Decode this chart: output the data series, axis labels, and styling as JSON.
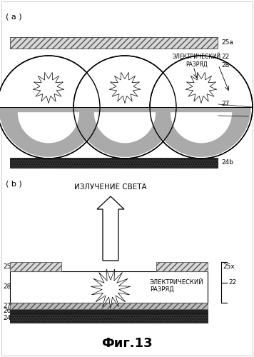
{
  "bg_color": "#ffffff",
  "panel_a_label": "( a )",
  "panel_b_label": "( b )",
  "figure_caption": "Фиг.13",
  "text_electric_a": "ЭЛЕКТРИЧЕСКИЙ\nРАЗРЯД",
  "text_electric_b": "ЭЛЕКТРИЧЕСКИЙ\nРАЗРЯД",
  "text_light": "ИЗЛУЧЕНИЕ СВЕТА"
}
